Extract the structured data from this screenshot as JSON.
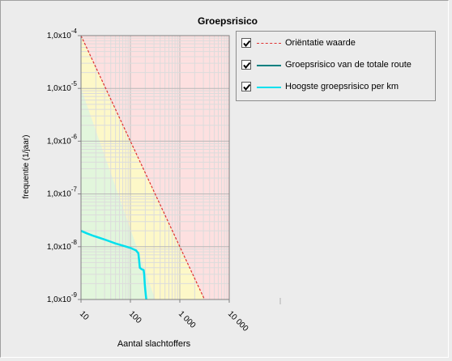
{
  "chart_data": {
    "type": "line",
    "title": "Groepsrisico",
    "xlabel": "Aantal slachtoffers",
    "ylabel": "frequentie (1/jaar)",
    "x_scale": "log",
    "y_scale": "log",
    "xlim": [
      10,
      10000
    ],
    "ylim": [
      1e-09,
      0.0001
    ],
    "x_ticks": [
      {
        "value": 10,
        "label": "10"
      },
      {
        "value": 100,
        "label": "100"
      },
      {
        "value": 1000,
        "label": "1 000"
      },
      {
        "value": 10000,
        "label": "10 000"
      }
    ],
    "y_ticks": [
      {
        "value": 0.0001,
        "mantissa": "1,0x10",
        "exp": "-4"
      },
      {
        "value": 1e-05,
        "mantissa": "1,0x10",
        "exp": "-5"
      },
      {
        "value": 1e-06,
        "mantissa": "1,0x10",
        "exp": "-6"
      },
      {
        "value": 1e-07,
        "mantissa": "1,0x10",
        "exp": "-7"
      },
      {
        "value": 1e-08,
        "mantissa": "1,0x10",
        "exp": "-8"
      },
      {
        "value": 1e-09,
        "mantissa": "1,0x10",
        "exp": "-9"
      }
    ],
    "grid": true,
    "legend_position": "right",
    "zones": [
      {
        "name": "red",
        "color": "#fde0e0"
      },
      {
        "name": "yellow",
        "color": "#fdf8c8"
      },
      {
        "name": "green",
        "color": "#e2f6dc"
      }
    ],
    "series": [
      {
        "name": "Oriëntatie waarde",
        "color": "#e03030",
        "style": "dashed",
        "x": [
          10,
          3162
        ],
        "y": [
          0.0001,
          1e-09
        ],
        "checked": true
      },
      {
        "name": "Groepsrisico van de totale route",
        "color": "#008080",
        "style": "solid",
        "x": [],
        "y": [],
        "checked": true
      },
      {
        "name": "Hoogste groepsrisico per km",
        "color": "#00e0ee",
        "style": "solid",
        "x": [
          10,
          13,
          18,
          25,
          35,
          50,
          70,
          100,
          130,
          145,
          150,
          155,
          165,
          175,
          185,
          190,
          195,
          200,
          205,
          210
        ],
        "y": [
          2e-08,
          1.8e-08,
          1.6e-08,
          1.45e-08,
          1.3e-08,
          1.15e-08,
          1.05e-08,
          9.5e-09,
          8.5e-09,
          7.5e-09,
          5.5e-09,
          4e-09,
          3.8e-09,
          3.7e-09,
          3.6e-09,
          3e-09,
          2e-09,
          1.5e-09,
          1.2e-09,
          1e-09
        ],
        "checked": true
      }
    ]
  }
}
